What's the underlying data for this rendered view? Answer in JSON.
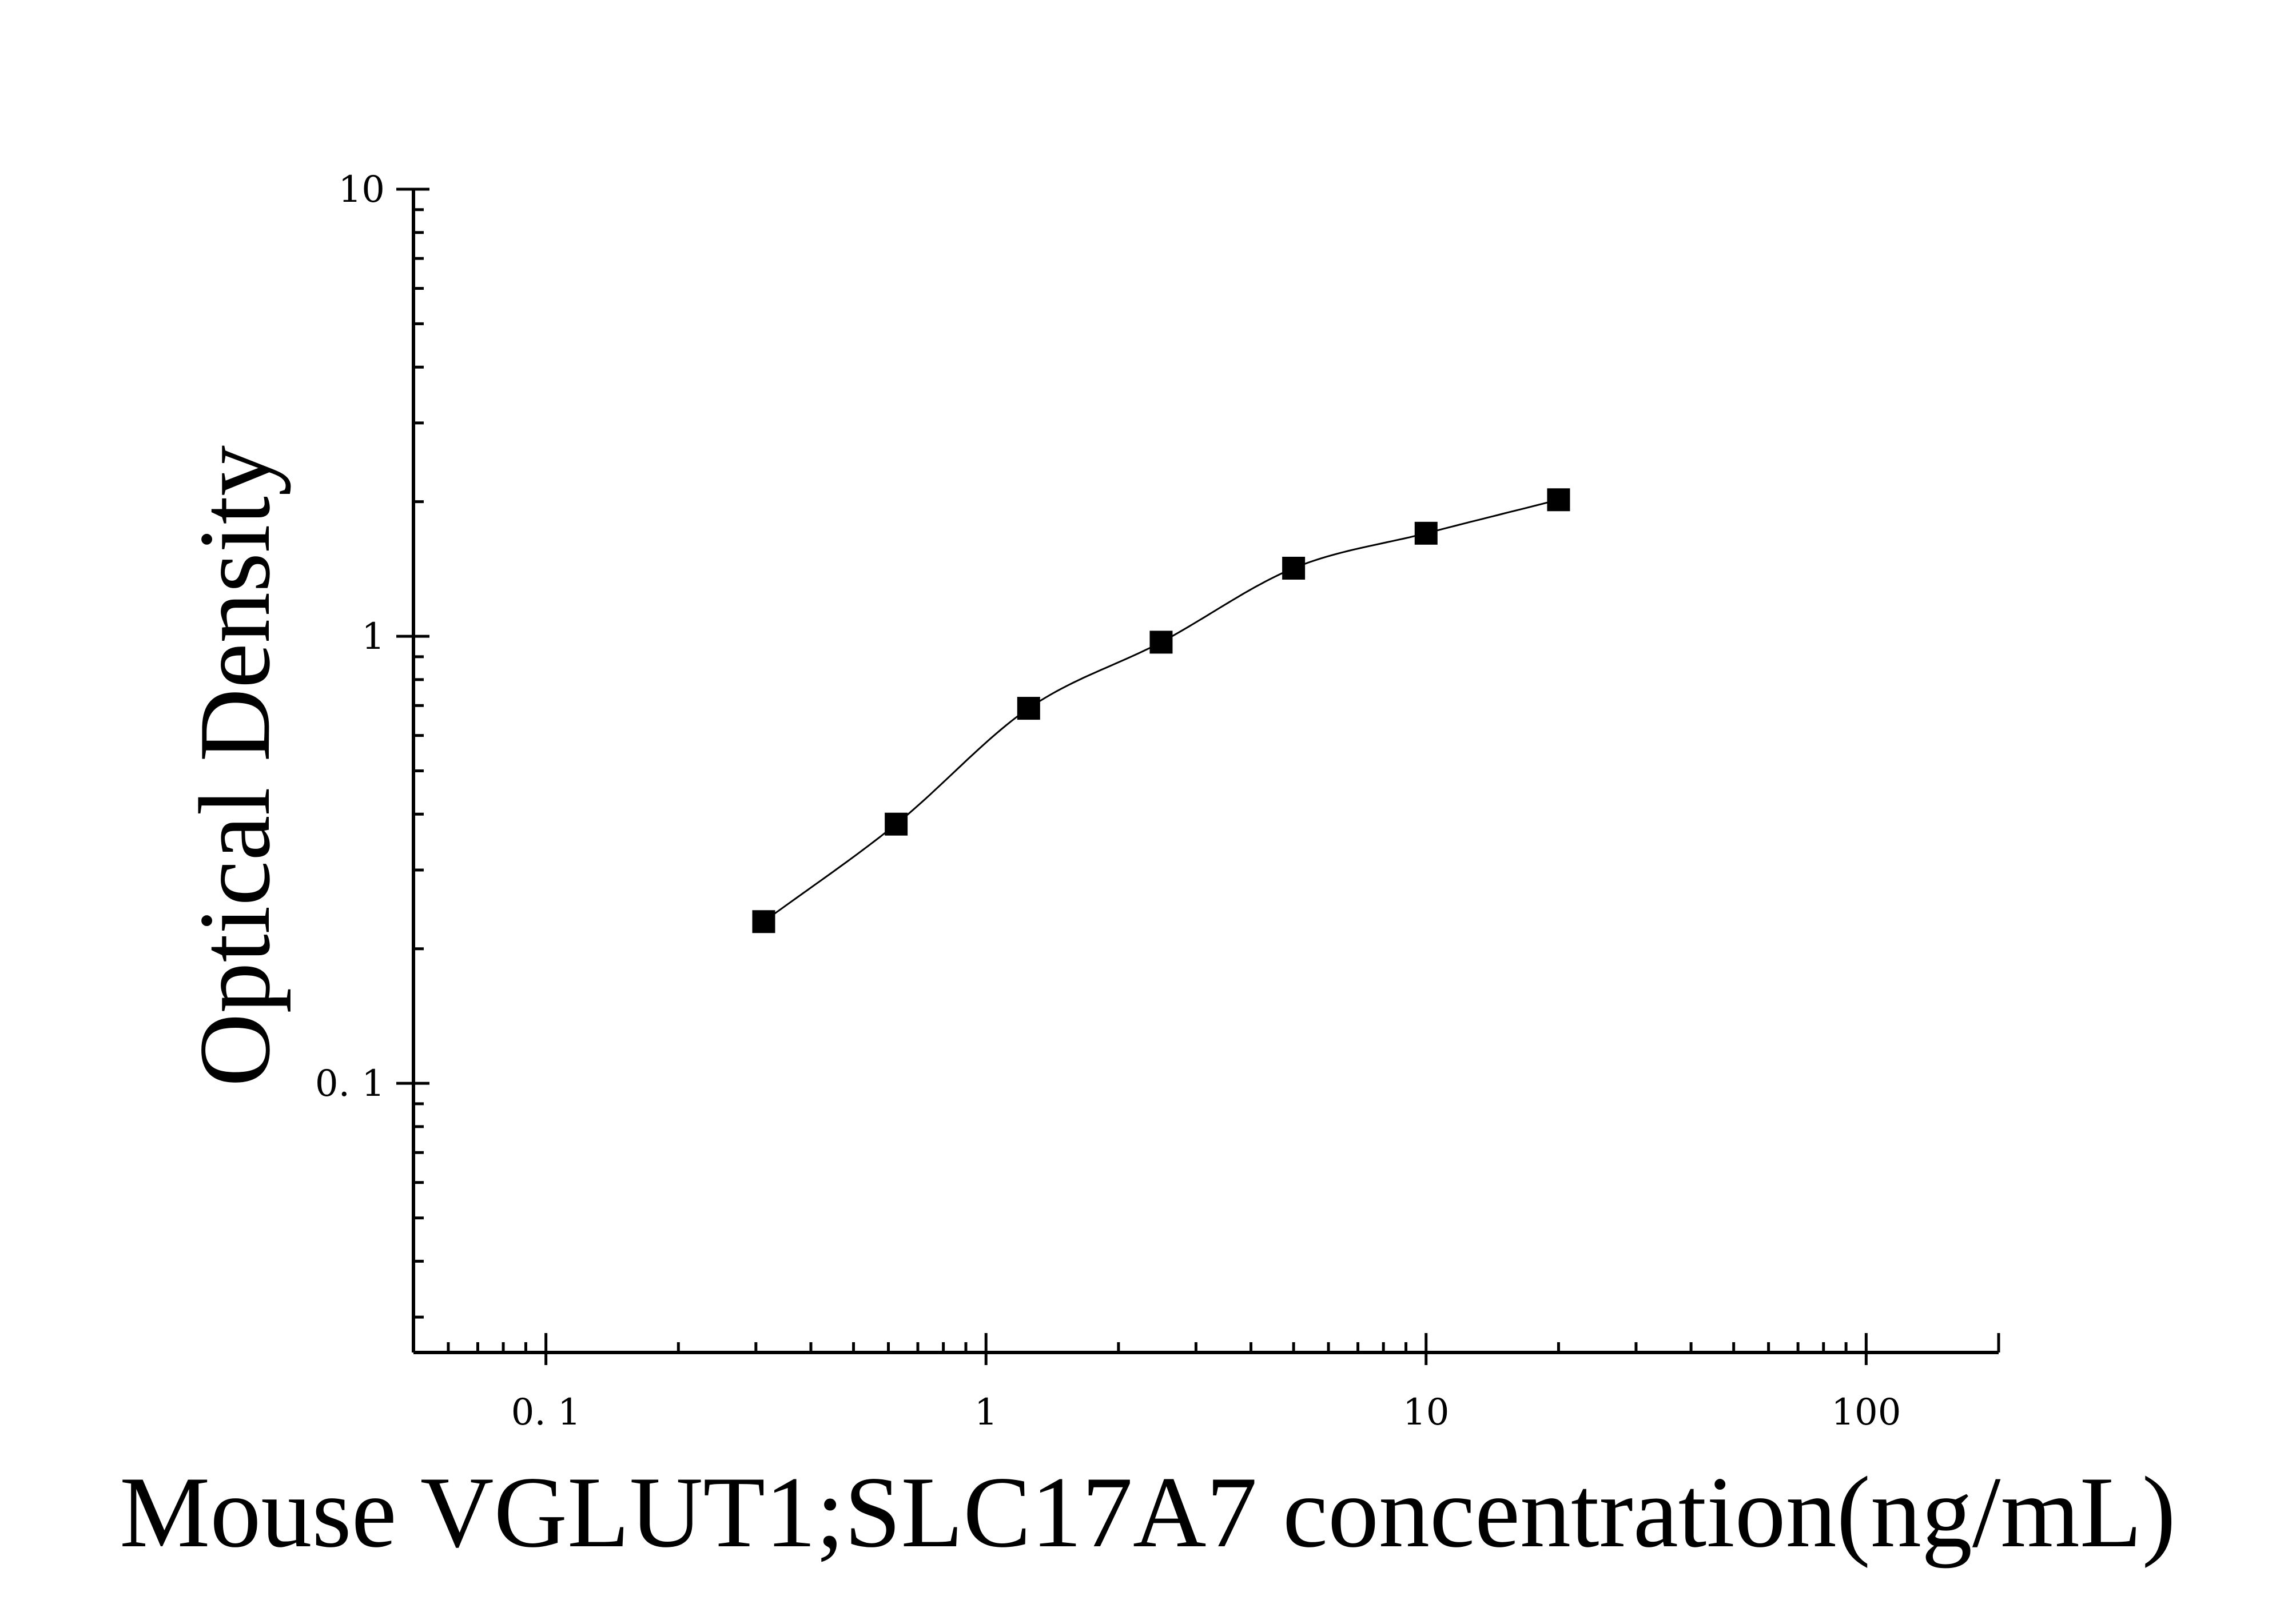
{
  "chart_data": {
    "type": "scatter",
    "title": "",
    "xlabel": "Mouse VGLUT1;SLC17A7 concentration(ng/mL)",
    "ylabel": "Optical Density",
    "x_scale": "log",
    "y_scale": "log",
    "xlim": [
      0.05,
      200
    ],
    "ylim": [
      0.025,
      10
    ],
    "x_tick_labels": [
      {
        "value": 0.1,
        "label": "0. 1"
      },
      {
        "value": 1,
        "label": "1"
      },
      {
        "value": 10,
        "label": "10"
      },
      {
        "value": 100,
        "label": "100"
      }
    ],
    "y_tick_labels": [
      {
        "value": 0.1,
        "label": "0. 1"
      },
      {
        "value": 1,
        "label": "1"
      },
      {
        "value": 10,
        "label": "10"
      }
    ],
    "grid": false,
    "marker": "square",
    "color": "#000000",
    "series": [
      {
        "x": [
          0.3125,
          0.625,
          1.25,
          2.5,
          5,
          10,
          20
        ],
        "y": [
          0.23,
          0.38,
          0.69,
          0.97,
          1.42,
          1.7,
          2.02
        ]
      }
    ],
    "fit_curve": true
  }
}
